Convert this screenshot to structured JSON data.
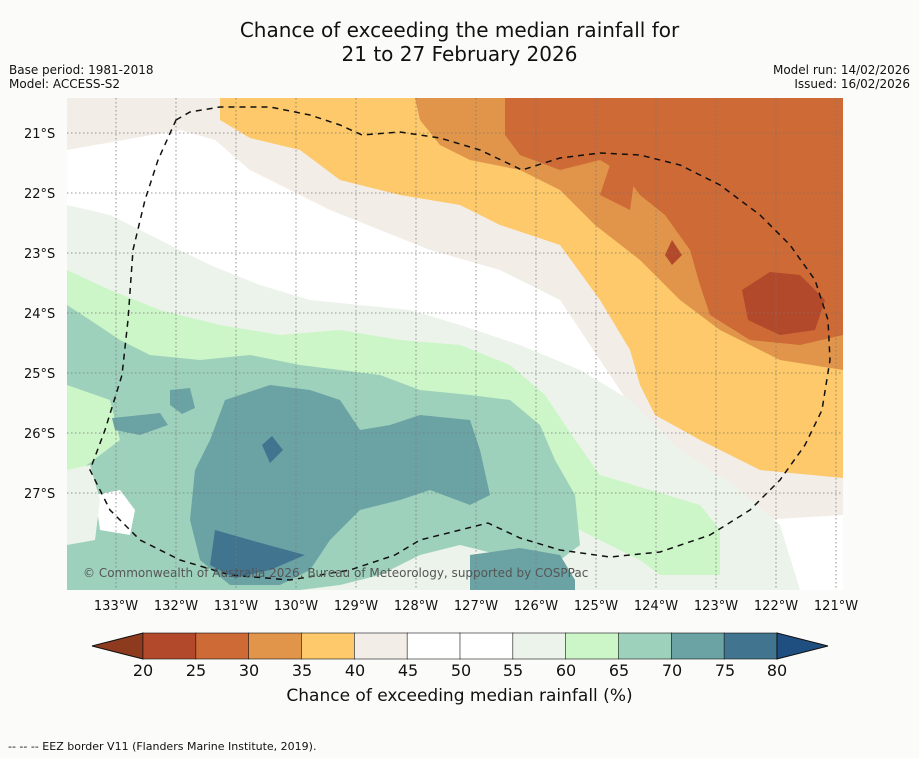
{
  "title": {
    "line1": "Chance of exceeding the median rainfall for",
    "line2": "21 to 27 February 2026"
  },
  "meta": {
    "base_period": "Base period: 1981-2018",
    "model": "Model: ACCESS-S2",
    "model_run": "Model run: 14/02/2026",
    "issued": "Issued: 16/02/2026"
  },
  "map": {
    "lat_labels": [
      "21°S",
      "22°S",
      "23°S",
      "24°S",
      "25°S",
      "26°S",
      "27°S"
    ],
    "lon_labels": [
      "133°W",
      "132°W",
      "131°W",
      "130°W",
      "129°W",
      "128°W",
      "127°W",
      "126°W",
      "125°W",
      "124°W",
      "123°W",
      "122°W",
      "121°W"
    ],
    "copyright": "© Commonwealth of Australia 2026, Bureau of Meteorology, supported by COSPPac"
  },
  "colorbar": {
    "ticks": [
      "20",
      "25",
      "30",
      "35",
      "40",
      "45",
      "50",
      "55",
      "60",
      "65",
      "70",
      "75",
      "80"
    ],
    "colors": [
      "#8e3a1f",
      "#b2492b",
      "#cd6a36",
      "#e1954a",
      "#fdc96a",
      "#f3ede8",
      "#ffffff",
      "#ffffff",
      "#ecf3ea",
      "#ccf5c8",
      "#9ed1bb",
      "#6ba3a5",
      "#41758f",
      "#1f4f80"
    ],
    "label": "Chance of exceeding median rainfall (%)"
  },
  "footnote": "--  --  -- EEZ border V11 (Flanders Marine Institute, 2019)."
}
